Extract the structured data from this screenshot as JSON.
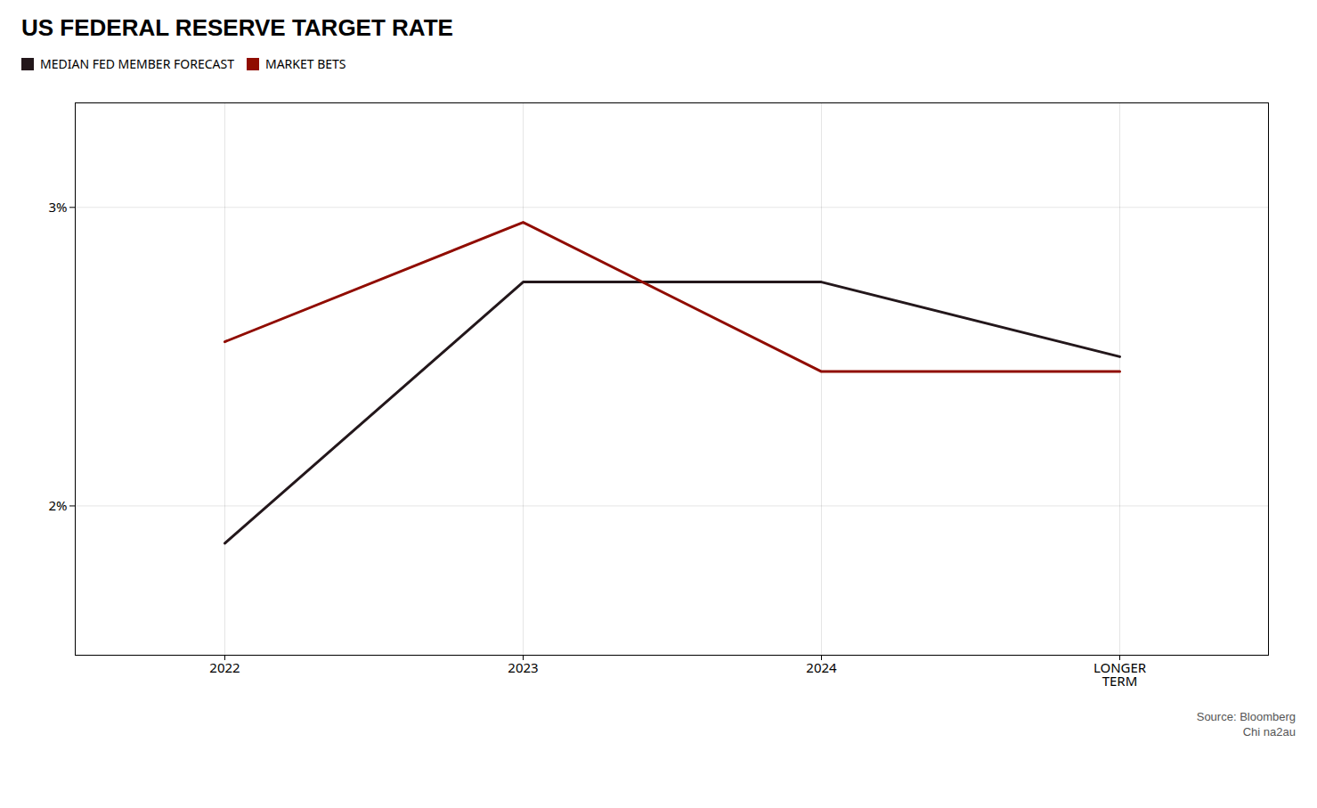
{
  "chart_data": {
    "type": "line",
    "title": "US FEDERAL RESERVE TARGET RATE",
    "categories": [
      "2022",
      "2023",
      "2024",
      "LONGER\nTERM"
    ],
    "series": [
      {
        "name": "MEDIAN FED MEMBER FORECAST",
        "values": [
          1.875,
          2.75,
          2.75,
          2.5
        ]
      },
      {
        "name": "MARKET BETS",
        "values": [
          2.55,
          2.95,
          2.45,
          2.45
        ]
      }
    ],
    "ylim": [
      1.5,
      3.35
    ],
    "yticks": [
      {
        "value": 2,
        "label": "2%"
      },
      {
        "value": 3,
        "label": "3%"
      }
    ],
    "grid": true,
    "legend": "upper left",
    "annotations": [
      "Source: Bloomberg",
      "Chi na2au"
    ]
  }
}
